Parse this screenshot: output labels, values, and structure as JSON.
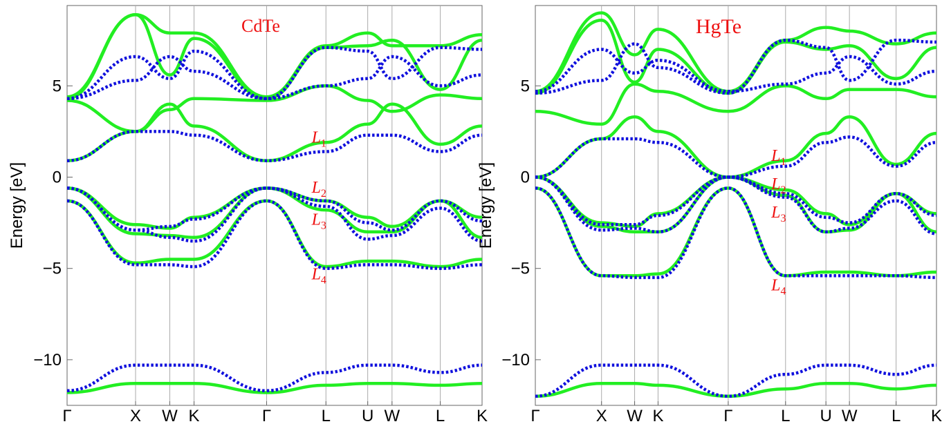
{
  "chart_data": [
    {
      "type": "line",
      "title": "CdTe",
      "ylabel": "Energy [eV]",
      "xlabel": "",
      "ylim": [
        -12.5,
        9.4
      ],
      "yticks": [
        5,
        0,
        -5,
        -10
      ],
      "ytick_labels": [
        "5",
        "0",
        "−5",
        "−10"
      ],
      "xticks": [
        {
          "pos": 0.0,
          "label": "Γ"
        },
        {
          "pos": 1.0,
          "label": "X"
        },
        {
          "pos": 1.5,
          "label": "W"
        },
        {
          "pos": 1.854,
          "label": "K"
        },
        {
          "pos": 2.914,
          "label": "Γ"
        },
        {
          "pos": 3.78,
          "label": "L"
        },
        {
          "pos": 4.39,
          "label": "U"
        },
        {
          "pos": 4.745,
          "label": "W"
        },
        {
          "pos": 5.45,
          "label": "L"
        },
        {
          "pos": 6.06,
          "label": "K"
        }
      ],
      "grid": "vertical lines at high-symmetry points",
      "legend": "none",
      "colors": {
        "green": "#22ee22",
        "blue": "#1010dd",
        "annotation": "#ee1111"
      },
      "annotations": [
        {
          "label": "L",
          "sub": "1",
          "x": 3.78,
          "y": 2.2
        },
        {
          "label": "L",
          "sub": "2",
          "x": 3.78,
          "y": -0.55
        },
        {
          "label": "L",
          "sub": "3",
          "x": 3.78,
          "y": -2.3
        },
        {
          "label": "L",
          "sub": "4",
          "x": 3.78,
          "y": -5.3
        }
      ],
      "series": [
        {
          "style": "solid",
          "x": [
            0,
            1,
            1.5,
            1.854,
            2.914,
            3.78,
            4.39,
            4.745,
            5.45,
            6.06
          ],
          "values": [
            -11.8,
            -11.3,
            -11.3,
            -11.3,
            -11.8,
            -11.4,
            -11.3,
            -11.3,
            -11.4,
            -11.3
          ]
        },
        {
          "style": "solid",
          "x": [
            0,
            1,
            1.5,
            1.854,
            2.914,
            3.78,
            4.39,
            4.745,
            5.45,
            6.06
          ],
          "values": [
            -1.3,
            -4.7,
            -4.5,
            -4.5,
            -1.3,
            -4.9,
            -4.6,
            -4.6,
            -4.9,
            -4.5
          ]
        },
        {
          "style": "solid",
          "x": [
            0,
            1,
            1.5,
            1.854,
            2.914,
            3.78,
            4.39,
            4.745,
            5.45,
            6.06
          ],
          "values": [
            -0.6,
            -3.1,
            -3.2,
            -3.3,
            -0.6,
            -1.8,
            -3.0,
            -3.0,
            -1.3,
            -3.3
          ]
        },
        {
          "style": "solid",
          "x": [
            0,
            1,
            1.5,
            1.854,
            2.914,
            3.78,
            4.39,
            4.745,
            5.45,
            6.06
          ],
          "values": [
            -0.6,
            -2.6,
            -2.8,
            -2.2,
            -0.6,
            -1.3,
            -2.2,
            -2.7,
            -1.3,
            -2.2
          ]
        },
        {
          "style": "solid",
          "x": [
            0,
            1,
            1.5,
            1.854,
            2.914,
            3.78,
            4.39,
            4.745,
            5.45,
            6.06
          ],
          "values": [
            0.9,
            2.5,
            4.0,
            2.8,
            0.9,
            1.9,
            2.9,
            4.0,
            1.8,
            2.8
          ]
        },
        {
          "style": "solid",
          "x": [
            0,
            1,
            1.5,
            1.854,
            2.914,
            3.78,
            4.39,
            4.745,
            5.45,
            6.06
          ],
          "values": [
            4.2,
            2.5,
            3.7,
            4.3,
            4.2,
            5.0,
            4.2,
            3.6,
            4.5,
            4.3
          ]
        },
        {
          "style": "solid",
          "x": [
            0,
            1,
            1.5,
            1.854,
            2.914,
            3.78,
            4.39,
            4.745,
            5.45,
            6.06
          ],
          "values": [
            4.3,
            8.9,
            5.6,
            7.6,
            4.3,
            7.1,
            7.2,
            7.5,
            4.8,
            7.5
          ]
        },
        {
          "style": "solid",
          "x": [
            0,
            1,
            1.5,
            1.854,
            2.914,
            3.78,
            4.39,
            4.745,
            5.45,
            6.06
          ],
          "values": [
            4.4,
            8.9,
            7.9,
            7.9,
            4.4,
            7.2,
            7.9,
            7.2,
            7.2,
            7.8
          ]
        },
        {
          "style": "dotted",
          "x": [
            0,
            1,
            1.5,
            1.854,
            2.914,
            3.78,
            4.39,
            4.745,
            5.45,
            6.06
          ],
          "values": [
            -11.7,
            -10.3,
            -10.3,
            -10.3,
            -11.7,
            -10.7,
            -10.3,
            -10.3,
            -10.7,
            -10.3
          ]
        },
        {
          "style": "dotted",
          "x": [
            0,
            1,
            1.5,
            1.854,
            2.914,
            3.78,
            4.39,
            4.745,
            5.45,
            6.06
          ],
          "values": [
            -1.3,
            -4.8,
            -4.8,
            -4.9,
            -1.3,
            -5.0,
            -4.8,
            -4.8,
            -5.0,
            -4.8
          ]
        },
        {
          "style": "dotted",
          "x": [
            0,
            1,
            1.5,
            1.854,
            2.914,
            3.78,
            4.39,
            4.745,
            5.45,
            6.06
          ],
          "values": [
            -0.6,
            -2.9,
            -3.3,
            -3.5,
            -0.6,
            -1.6,
            -3.4,
            -3.2,
            -1.7,
            -3.5
          ]
        },
        {
          "style": "dotted",
          "x": [
            0,
            1,
            1.5,
            1.854,
            2.914,
            3.78,
            4.39,
            4.745,
            5.45,
            6.06
          ],
          "values": [
            -0.6,
            -2.9,
            -2.7,
            -2.3,
            -0.6,
            -1.3,
            -2.5,
            -2.9,
            -1.3,
            -2.4
          ]
        },
        {
          "style": "dotted",
          "x": [
            0,
            1,
            1.5,
            1.854,
            2.914,
            3.78,
            4.39,
            4.745,
            5.45,
            6.06
          ],
          "values": [
            0.9,
            2.5,
            2.5,
            2.3,
            0.9,
            1.4,
            2.3,
            2.3,
            1.4,
            2.3
          ]
        },
        {
          "style": "dotted",
          "x": [
            0,
            1,
            1.5,
            1.854,
            2.914,
            3.78,
            4.39,
            4.745,
            5.45,
            6.06
          ],
          "values": [
            4.3,
            6.6,
            5.4,
            6.9,
            4.3,
            5.0,
            5.4,
            6.6,
            5.0,
            5.6
          ]
        },
        {
          "style": "dotted",
          "x": [
            0,
            1,
            1.5,
            1.854,
            2.914,
            3.78,
            4.39,
            4.745,
            5.45,
            6.06
          ],
          "values": [
            4.3,
            5.3,
            6.6,
            5.8,
            4.3,
            7.1,
            6.9,
            5.4,
            7.1,
            7.0
          ]
        }
      ]
    },
    {
      "type": "line",
      "title": "HgTe",
      "ylabel": "Energy [eV]",
      "xlabel": "",
      "ylim": [
        -12.5,
        9.4
      ],
      "yticks": [
        5,
        0,
        -5,
        -10
      ],
      "ytick_labels": [
        "5",
        "0",
        "−5",
        "−10"
      ],
      "xticks": [
        {
          "pos": 0.0,
          "label": "Γ"
        },
        {
          "pos": 1.0,
          "label": "X"
        },
        {
          "pos": 1.5,
          "label": "W"
        },
        {
          "pos": 1.854,
          "label": "K"
        },
        {
          "pos": 2.914,
          "label": "Γ"
        },
        {
          "pos": 3.78,
          "label": "L"
        },
        {
          "pos": 4.39,
          "label": "U"
        },
        {
          "pos": 4.745,
          "label": "W"
        },
        {
          "pos": 5.45,
          "label": "L"
        },
        {
          "pos": 6.06,
          "label": "K"
        }
      ],
      "grid": "vertical lines at high-symmetry points",
      "legend": "none",
      "colors": {
        "green": "#22ee22",
        "blue": "#1010dd",
        "annotation": "#ee1111"
      },
      "annotations": [
        {
          "label": "L",
          "sub": "1",
          "x": 3.78,
          "y": 1.2
        },
        {
          "label": "L",
          "sub": "2",
          "x": 3.78,
          "y": -0.35
        },
        {
          "label": "L",
          "sub": "3",
          "x": 3.78,
          "y": -1.9
        },
        {
          "label": "L",
          "sub": "4",
          "x": 3.78,
          "y": -5.9
        }
      ],
      "series": [
        {
          "style": "solid",
          "x": [
            0,
            1,
            1.5,
            1.854,
            2.914,
            3.78,
            4.39,
            4.745,
            5.45,
            6.06
          ],
          "values": [
            -12.0,
            -11.3,
            -11.3,
            -11.4,
            -12.0,
            -11.6,
            -11.3,
            -11.3,
            -11.6,
            -11.4
          ]
        },
        {
          "style": "solid",
          "x": [
            0,
            1,
            1.5,
            1.854,
            2.914,
            3.78,
            4.39,
            4.745,
            5.45,
            6.06
          ],
          "values": [
            -0.6,
            -5.4,
            -5.4,
            -5.3,
            -0.6,
            -5.4,
            -5.2,
            -5.2,
            -5.4,
            -5.2
          ]
        },
        {
          "style": "solid",
          "x": [
            0,
            1,
            1.5,
            1.854,
            2.914,
            3.78,
            4.39,
            4.745,
            5.45,
            6.06
          ],
          "values": [
            0.0,
            -2.7,
            -3.0,
            -3.0,
            0.0,
            -1.0,
            -3.0,
            -2.9,
            -0.9,
            -3.0
          ]
        },
        {
          "style": "solid",
          "x": [
            0,
            1,
            1.5,
            1.854,
            2.914,
            3.78,
            4.39,
            4.745,
            5.45,
            6.06
          ],
          "values": [
            0.0,
            -2.5,
            -2.7,
            -2.0,
            0.0,
            -0.7,
            -2.0,
            -2.6,
            -0.9,
            -2.0
          ]
        },
        {
          "style": "solid",
          "x": [
            0,
            1,
            1.5,
            1.854,
            2.914,
            3.78,
            4.39,
            4.745,
            5.45,
            6.06
          ],
          "values": [
            0.0,
            2.1,
            3.3,
            2.5,
            0.0,
            0.9,
            2.4,
            3.3,
            0.7,
            2.4
          ]
        },
        {
          "style": "solid",
          "x": [
            0,
            1,
            1.5,
            1.854,
            2.914,
            3.78,
            4.39,
            4.745,
            5.45,
            6.06
          ],
          "values": [
            3.6,
            2.9,
            5.1,
            4.7,
            3.6,
            5.0,
            4.3,
            4.8,
            4.8,
            4.4
          ]
        },
        {
          "style": "solid",
          "x": [
            0,
            1,
            1.5,
            1.854,
            2.914,
            3.78,
            4.39,
            4.745,
            5.45,
            6.06
          ],
          "values": [
            4.6,
            8.6,
            5.2,
            7.0,
            4.6,
            7.4,
            7.0,
            7.2,
            5.4,
            7.1
          ]
        },
        {
          "style": "solid",
          "x": [
            0,
            1,
            1.5,
            1.854,
            2.914,
            3.78,
            4.39,
            4.745,
            5.45,
            6.06
          ],
          "values": [
            4.7,
            9.0,
            6.7,
            8.1,
            4.7,
            7.5,
            8.2,
            8.0,
            7.3,
            7.9
          ]
        },
        {
          "style": "dotted",
          "x": [
            0,
            1,
            1.5,
            1.854,
            2.914,
            3.78,
            4.39,
            4.745,
            5.45,
            6.06
          ],
          "values": [
            -12.0,
            -10.3,
            -10.3,
            -10.3,
            -12.0,
            -10.8,
            -10.3,
            -10.3,
            -10.8,
            -10.3
          ]
        },
        {
          "style": "dotted",
          "x": [
            0,
            1,
            1.5,
            1.854,
            2.914,
            3.78,
            4.39,
            4.745,
            5.45,
            6.06
          ],
          "values": [
            -0.6,
            -5.4,
            -5.5,
            -5.5,
            -0.6,
            -5.4,
            -5.4,
            -5.4,
            -5.4,
            -5.5
          ]
        },
        {
          "style": "dotted",
          "x": [
            0,
            1,
            1.5,
            1.854,
            2.914,
            3.78,
            4.39,
            4.745,
            5.45,
            6.06
          ],
          "values": [
            0.0,
            -2.9,
            -2.8,
            -3.0,
            0.0,
            -1.1,
            -3.0,
            -2.8,
            -1.3,
            -3.1
          ]
        },
        {
          "style": "dotted",
          "x": [
            0,
            1,
            1.5,
            1.854,
            2.914,
            3.78,
            4.39,
            4.745,
            5.45,
            6.06
          ],
          "values": [
            0.0,
            -2.6,
            -2.6,
            -2.1,
            0.0,
            -0.9,
            -2.2,
            -2.5,
            -0.9,
            -2.1
          ]
        },
        {
          "style": "dotted",
          "x": [
            0,
            1,
            1.5,
            1.854,
            2.914,
            3.78,
            4.39,
            4.745,
            5.45,
            6.06
          ],
          "values": [
            0.0,
            2.1,
            2.1,
            1.9,
            0.0,
            0.6,
            1.9,
            2.2,
            0.6,
            1.9
          ]
        },
        {
          "style": "dotted",
          "x": [
            0,
            1,
            1.5,
            1.854,
            2.914,
            3.78,
            4.39,
            4.745,
            5.45,
            6.06
          ],
          "values": [
            4.7,
            7.0,
            5.7,
            6.4,
            4.7,
            5.1,
            5.7,
            6.6,
            5.1,
            5.8
          ]
        },
        {
          "style": "dotted",
          "x": [
            0,
            1,
            1.5,
            1.854,
            2.914,
            3.78,
            4.39,
            4.745,
            5.45,
            6.06
          ],
          "values": [
            4.6,
            5.3,
            7.3,
            6.0,
            4.6,
            7.5,
            7.1,
            5.3,
            7.5,
            7.4
          ]
        }
      ]
    }
  ]
}
